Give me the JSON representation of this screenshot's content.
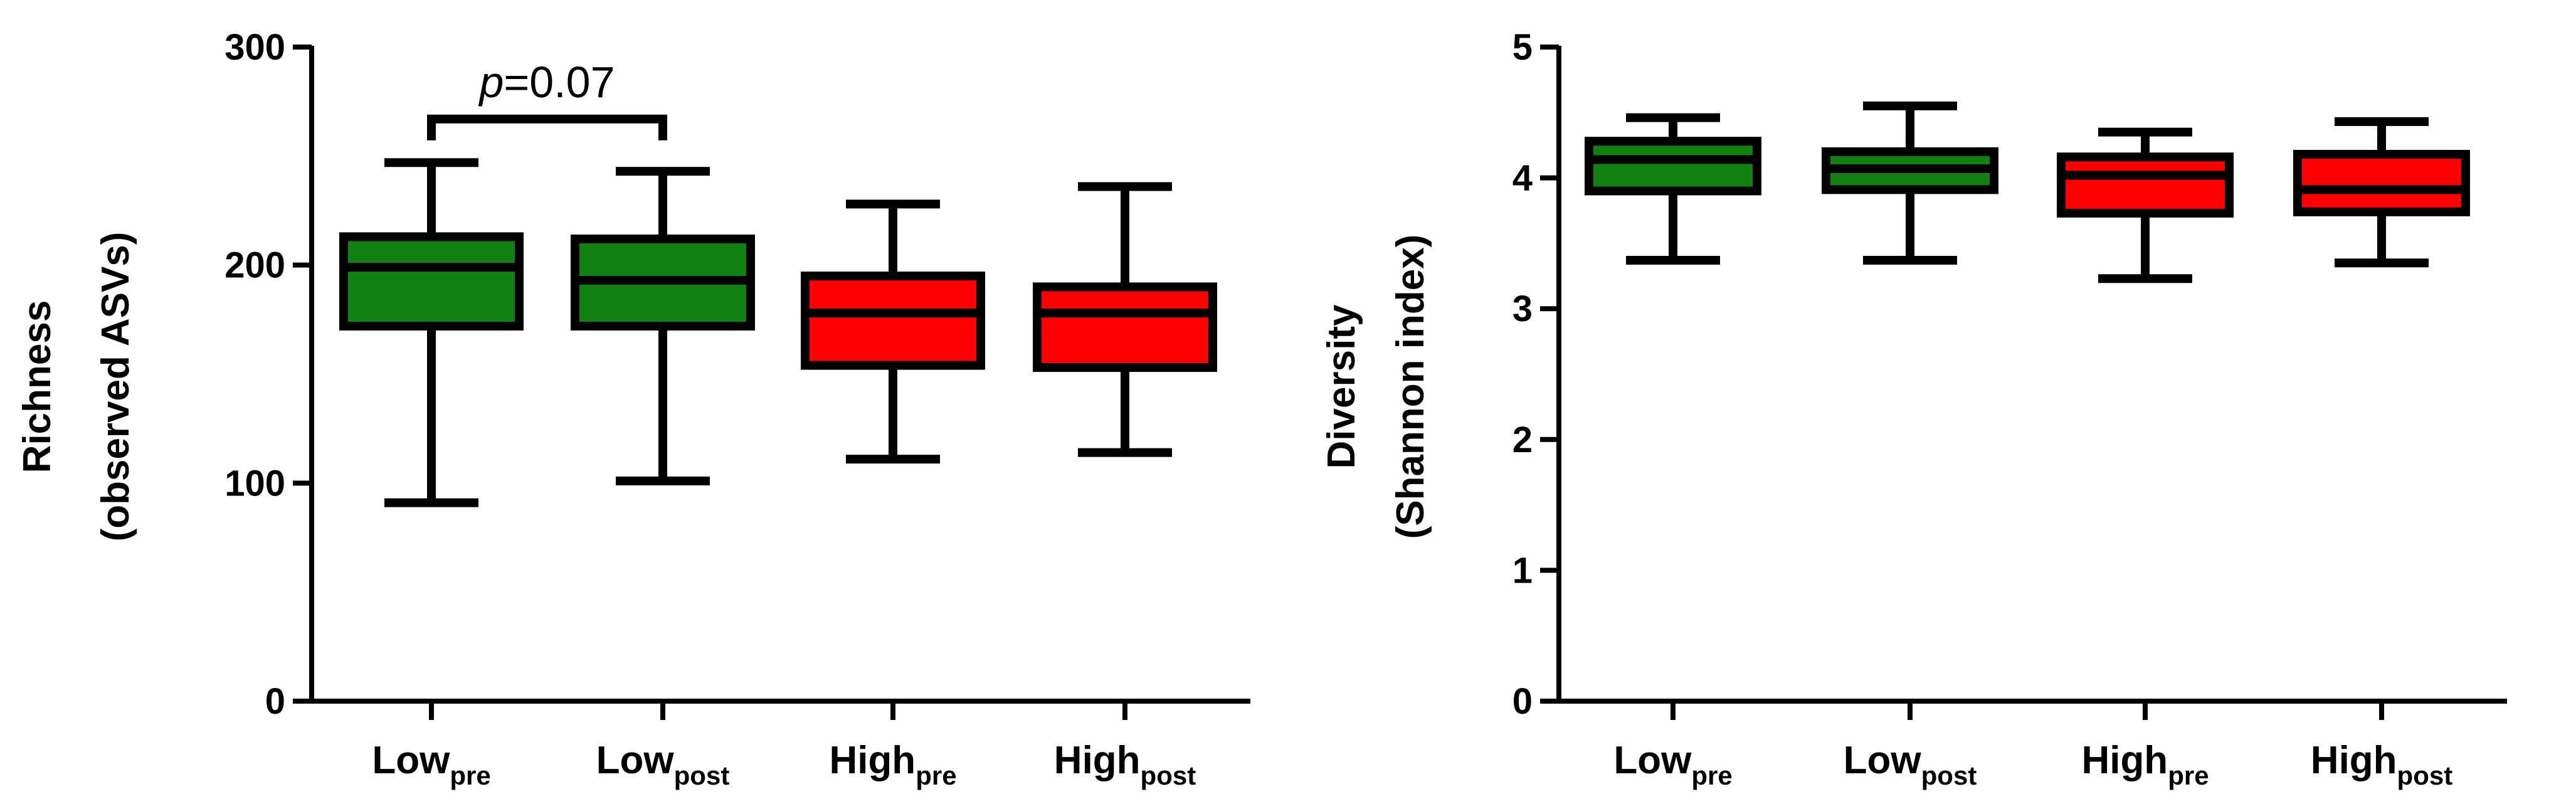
{
  "chart_data": [
    {
      "type": "box",
      "ylabel_line1": "Richness",
      "ylabel_line2": "(observed ASVs)",
      "ylim": [
        0,
        300
      ],
      "yticks": [
        0,
        100,
        200,
        300
      ],
      "categories": [
        {
          "main": "Low",
          "sub": "pre"
        },
        {
          "main": "Low",
          "sub": "post"
        },
        {
          "main": "High",
          "sub": "pre"
        },
        {
          "main": "High",
          "sub": "post"
        }
      ],
      "boxes": [
        {
          "min": 91,
          "q1": 172,
          "median": 199,
          "q3": 213,
          "max": 247,
          "color": "#138013"
        },
        {
          "min": 101,
          "q1": 172,
          "median": 193,
          "q3": 212,
          "max": 243,
          "color": "#138013"
        },
        {
          "min": 111,
          "q1": 154,
          "median": 178,
          "q3": 195,
          "max": 228,
          "color": "#fe0000"
        },
        {
          "min": 114,
          "q1": 153,
          "median": 178,
          "q3": 190,
          "max": 236,
          "color": "#fe0000"
        }
      ],
      "annotation": {
        "from": 0,
        "to": 1,
        "y": 267,
        "p_italic": "p",
        "p_rest": "=0.07"
      }
    },
    {
      "type": "box",
      "ylabel_line1": "Diversity",
      "ylabel_line2": "(Shannon index)",
      "ylim": [
        0,
        5
      ],
      "yticks": [
        0,
        1,
        2,
        3,
        4,
        5
      ],
      "categories": [
        {
          "main": "Low",
          "sub": "pre"
        },
        {
          "main": "Low",
          "sub": "post"
        },
        {
          "main": "High",
          "sub": "pre"
        },
        {
          "main": "High",
          "sub": "post"
        }
      ],
      "boxes": [
        {
          "min": 3.37,
          "q1": 3.9,
          "median": 4.14,
          "q3": 4.28,
          "max": 4.46,
          "color": "#138013"
        },
        {
          "min": 3.37,
          "q1": 3.91,
          "median": 4.07,
          "q3": 4.2,
          "max": 4.55,
          "color": "#138013"
        },
        {
          "min": 3.23,
          "q1": 3.73,
          "median": 4.02,
          "q3": 4.16,
          "max": 4.35,
          "color": "#fe0000"
        },
        {
          "min": 3.35,
          "q1": 3.74,
          "median": 3.91,
          "q3": 4.18,
          "max": 4.43,
          "color": "#fe0000"
        }
      ]
    }
  ]
}
